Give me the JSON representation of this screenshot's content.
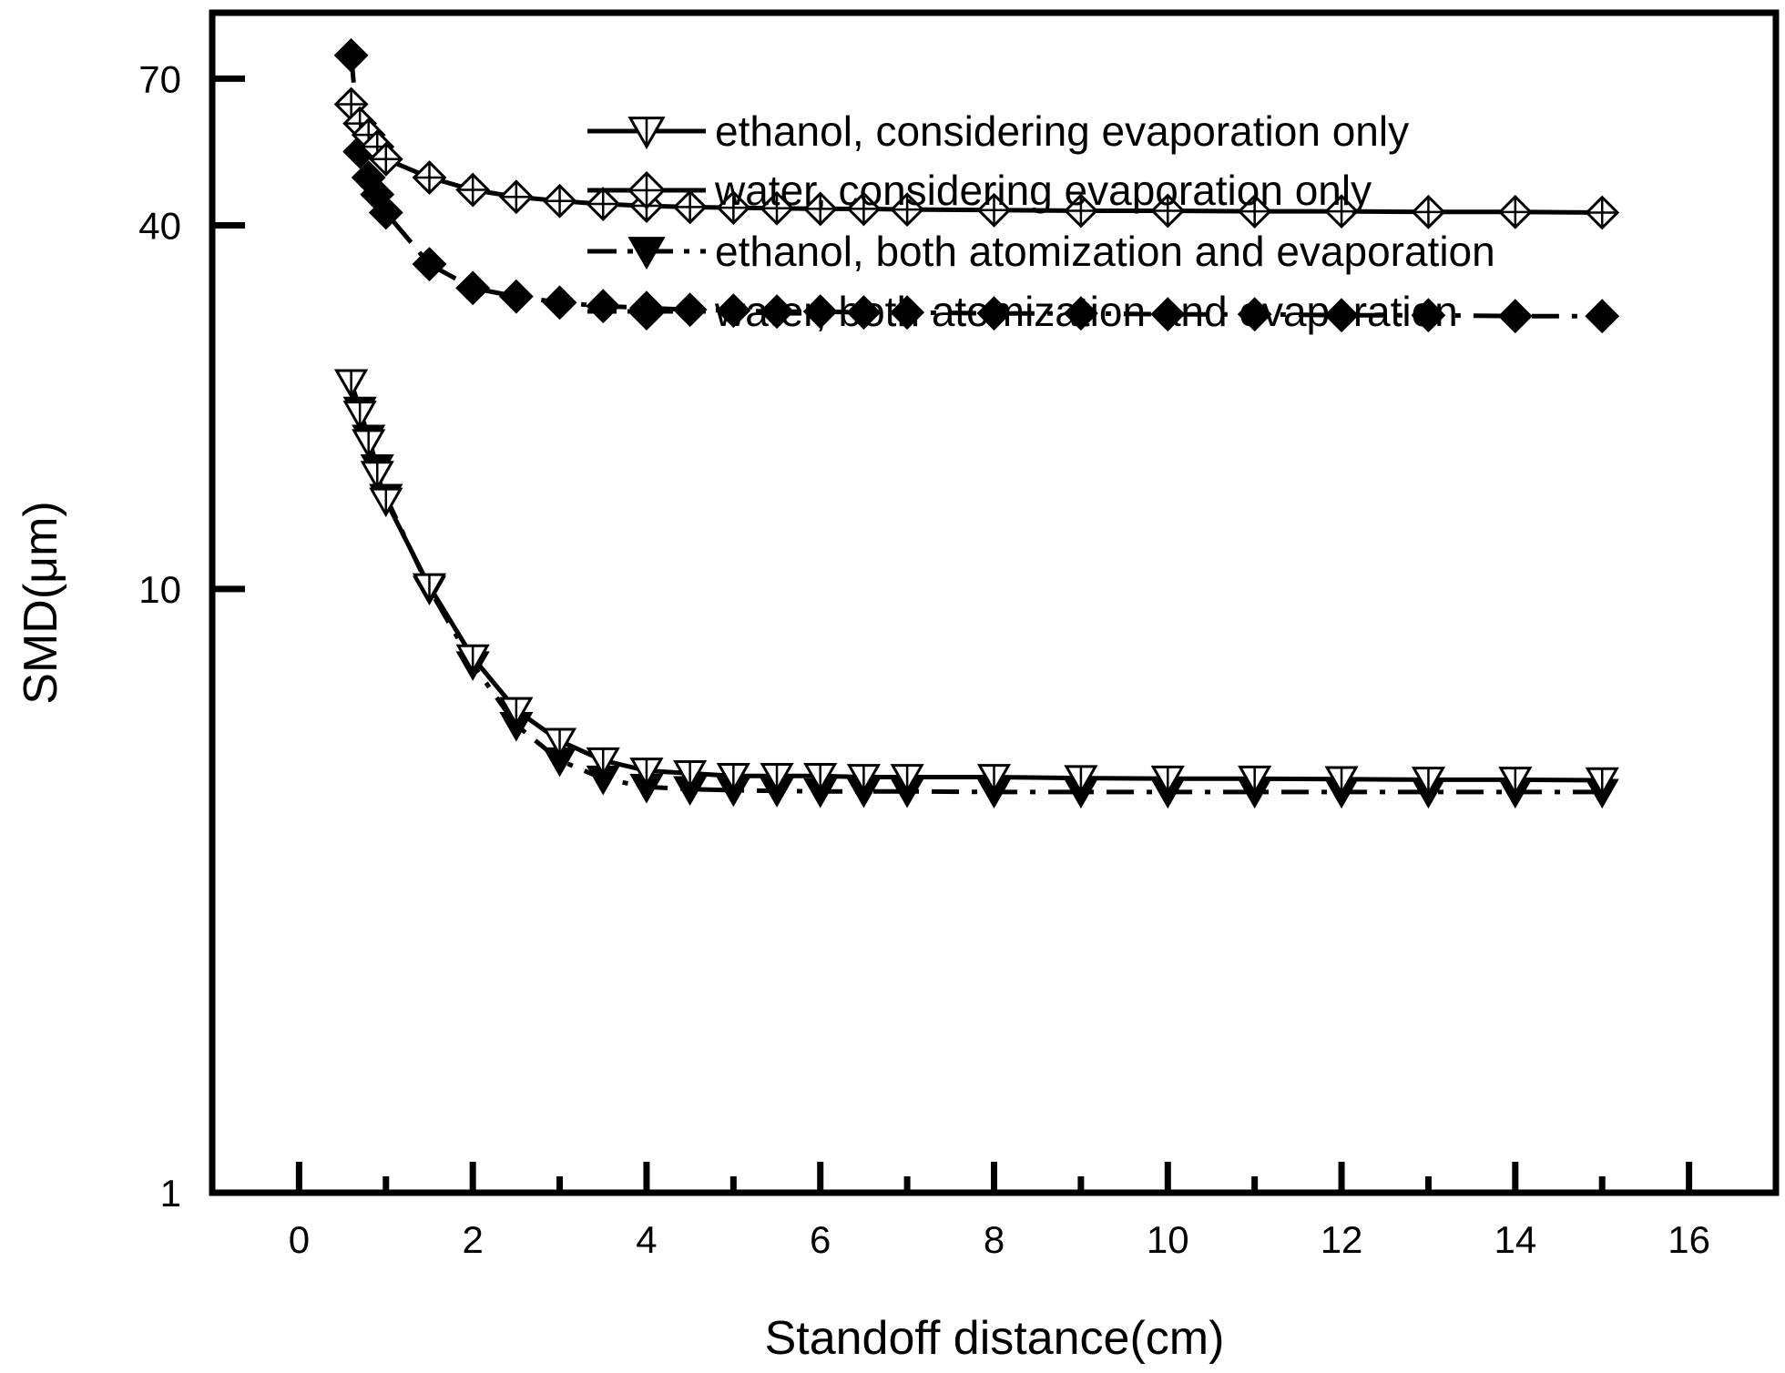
{
  "chart_data": {
    "type": "line",
    "title": "",
    "xlabel": "Standoff distance(cm)",
    "ylabel": "SMD(μm)",
    "xlim": [
      -1,
      17
    ],
    "ylim": [
      1,
      90
    ],
    "yscale": "log",
    "xticks": [
      0,
      2,
      4,
      6,
      8,
      10,
      12,
      14,
      16
    ],
    "xtick_labels": [
      "0",
      "2",
      "4",
      "6",
      "8",
      "10",
      "12",
      "14",
      "16"
    ],
    "yticks": [
      1,
      10,
      40,
      70
    ],
    "ytick_labels": [
      "1",
      "10",
      "40",
      "70"
    ],
    "legend_position": "top-right",
    "series": [
      {
        "name": "ethanol, considering evaporation only",
        "marker": "triangle-down-open",
        "linestyle": "solid",
        "x": [
          0.6,
          0.7,
          0.8,
          0.9,
          1.0,
          1.5,
          2.0,
          2.5,
          3.0,
          3.5,
          4.0,
          4.5,
          5.0,
          5.5,
          6.0,
          6.5,
          7.0,
          8.0,
          9.0,
          10.0,
          11.0,
          12.0,
          13.0,
          14.0,
          15.0
        ],
        "y": [
          22.0,
          19.5,
          17.5,
          15.5,
          14.0,
          10.1,
          7.7,
          6.3,
          5.6,
          5.2,
          5.0,
          4.95,
          4.9,
          4.9,
          4.9,
          4.88,
          4.88,
          4.88,
          4.86,
          4.85,
          4.85,
          4.84,
          4.83,
          4.83,
          4.82
        ]
      },
      {
        "name": "water, considering evaporation only",
        "marker": "diamond-open",
        "linestyle": "solid",
        "x": [
          0.6,
          0.7,
          0.8,
          0.9,
          1.0,
          1.5,
          2.0,
          2.5,
          3.0,
          3.5,
          4.0,
          4.5,
          5.0,
          5.5,
          6.0,
          6.5,
          7.0,
          8.0,
          9.0,
          10.0,
          11.0,
          12.0,
          13.0,
          14.0,
          15.0
        ],
        "y": [
          63.5,
          59.0,
          56.5,
          54.0,
          51.5,
          48.0,
          45.8,
          44.6,
          43.9,
          43.4,
          43.1,
          42.9,
          42.8,
          42.7,
          42.6,
          42.6,
          42.5,
          42.4,
          42.3,
          42.3,
          42.2,
          42.2,
          42.1,
          42.1,
          42.0
        ]
      },
      {
        "name": "ethanol, both atomization and evaporation",
        "marker": "triangle-down-filled",
        "linestyle": "dash-dot",
        "x": [
          0.6,
          0.7,
          0.8,
          0.9,
          1.0,
          1.5,
          2.0,
          2.5,
          3.0,
          3.5,
          4.0,
          4.5,
          5.0,
          5.5,
          6.0,
          6.5,
          7.0,
          8.0,
          9.0,
          10.0,
          11.0,
          12.0,
          13.0,
          14.0,
          15.0
        ],
        "y": [
          22.0,
          19.8,
          17.8,
          15.9,
          14.2,
          10.0,
          7.5,
          5.95,
          5.2,
          4.85,
          4.7,
          4.66,
          4.64,
          4.63,
          4.62,
          4.62,
          4.62,
          4.61,
          4.61,
          4.61,
          4.61,
          4.61,
          4.61,
          4.61,
          4.61
        ]
      },
      {
        "name": "water, both atomization and evaporation",
        "marker": "diamond-filled",
        "linestyle": "dash-dot",
        "x": [
          0.6,
          0.7,
          0.8,
          0.9,
          1.0,
          1.5,
          2.0,
          2.5,
          3.0,
          3.5,
          4.0,
          4.5,
          5.0,
          5.5,
          6.0,
          6.5,
          7.0,
          8.0,
          9.0,
          10.0,
          11.0,
          12.0,
          13.0,
          14.0,
          15.0
        ],
        "y": [
          76.5,
          53.0,
          48.0,
          45.0,
          42.0,
          34.5,
          31.5,
          30.5,
          29.8,
          29.4,
          29.2,
          29.0,
          28.9,
          28.8,
          28.8,
          28.7,
          28.7,
          28.6,
          28.6,
          28.5,
          28.5,
          28.4,
          28.4,
          28.3,
          28.3
        ]
      }
    ]
  }
}
